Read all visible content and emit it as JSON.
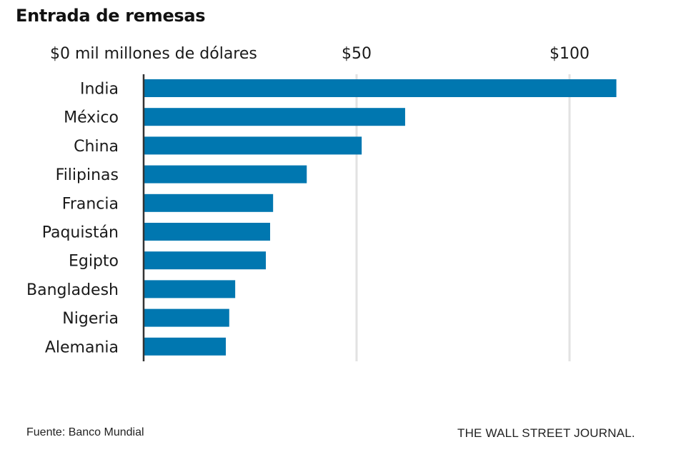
{
  "chart_data": {
    "type": "bar",
    "orientation": "horizontal",
    "title": "Entrada de remesas",
    "xlabel": "mil millones de dólares",
    "ylabel": "",
    "unit_label": "$0 mil millones de dólares",
    "xlim": [
      0,
      115
    ],
    "x_ticks": [
      {
        "value": 0,
        "label": "$0 mil millones de dólares"
      },
      {
        "value": 50,
        "label": "$50"
      },
      {
        "value": 100,
        "label": "$100"
      }
    ],
    "grid": true,
    "categories": [
      "India",
      "México",
      "China",
      "Filipinas",
      "Francia",
      "Paquistán",
      "Egipto",
      "Bangladesh",
      "Nigeria",
      "Alemania"
    ],
    "values": [
      111,
      61.4,
      51.2,
      38.3,
      30.4,
      29.7,
      28.7,
      21.5,
      20.1,
      19.3
    ],
    "bar_color": "#0077b0",
    "grid_color": "#e2e2e2",
    "axis_color": "#333333"
  },
  "footer": {
    "source": "Fuente: Banco Mundial",
    "brand": "THE WALL STREET JOURNAL."
  }
}
